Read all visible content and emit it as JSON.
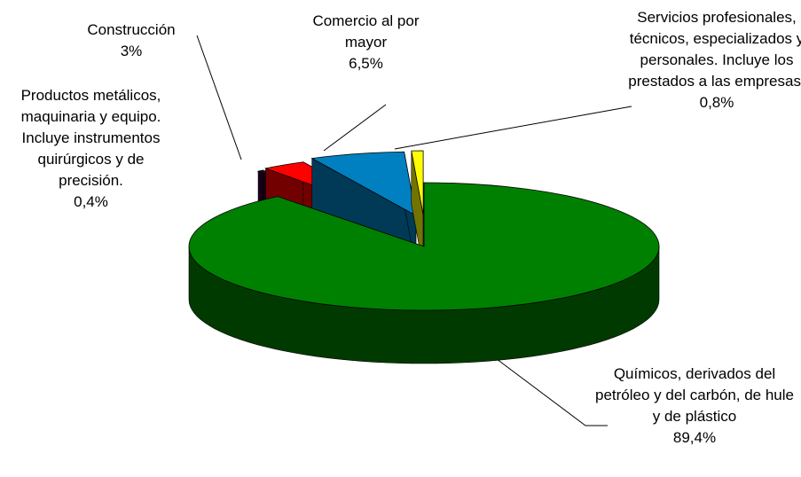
{
  "chart_data": {
    "type": "pie3d",
    "categories": [
      "Químicos, derivados del petróleo y del carbón, de hule y de plástico",
      "Productos metálicos, maquinaria y equipo. Incluye instrumentos quirúrgicos y de precisión.",
      "Construcción",
      "Comercio al por mayor",
      "Servicios profesionales, técnicos, especializados y personales. Incluye los prestados a las empresas."
    ],
    "values": [
      89.4,
      0.4,
      3,
      6.5,
      0.8
    ],
    "value_labels": [
      "89,4%",
      "0,4%",
      "3%",
      "6,5%",
      "0,8%"
    ],
    "colors": [
      "#008000",
      "#330033",
      "#ff0000",
      "#0080c0",
      "#ffff00"
    ]
  }
}
